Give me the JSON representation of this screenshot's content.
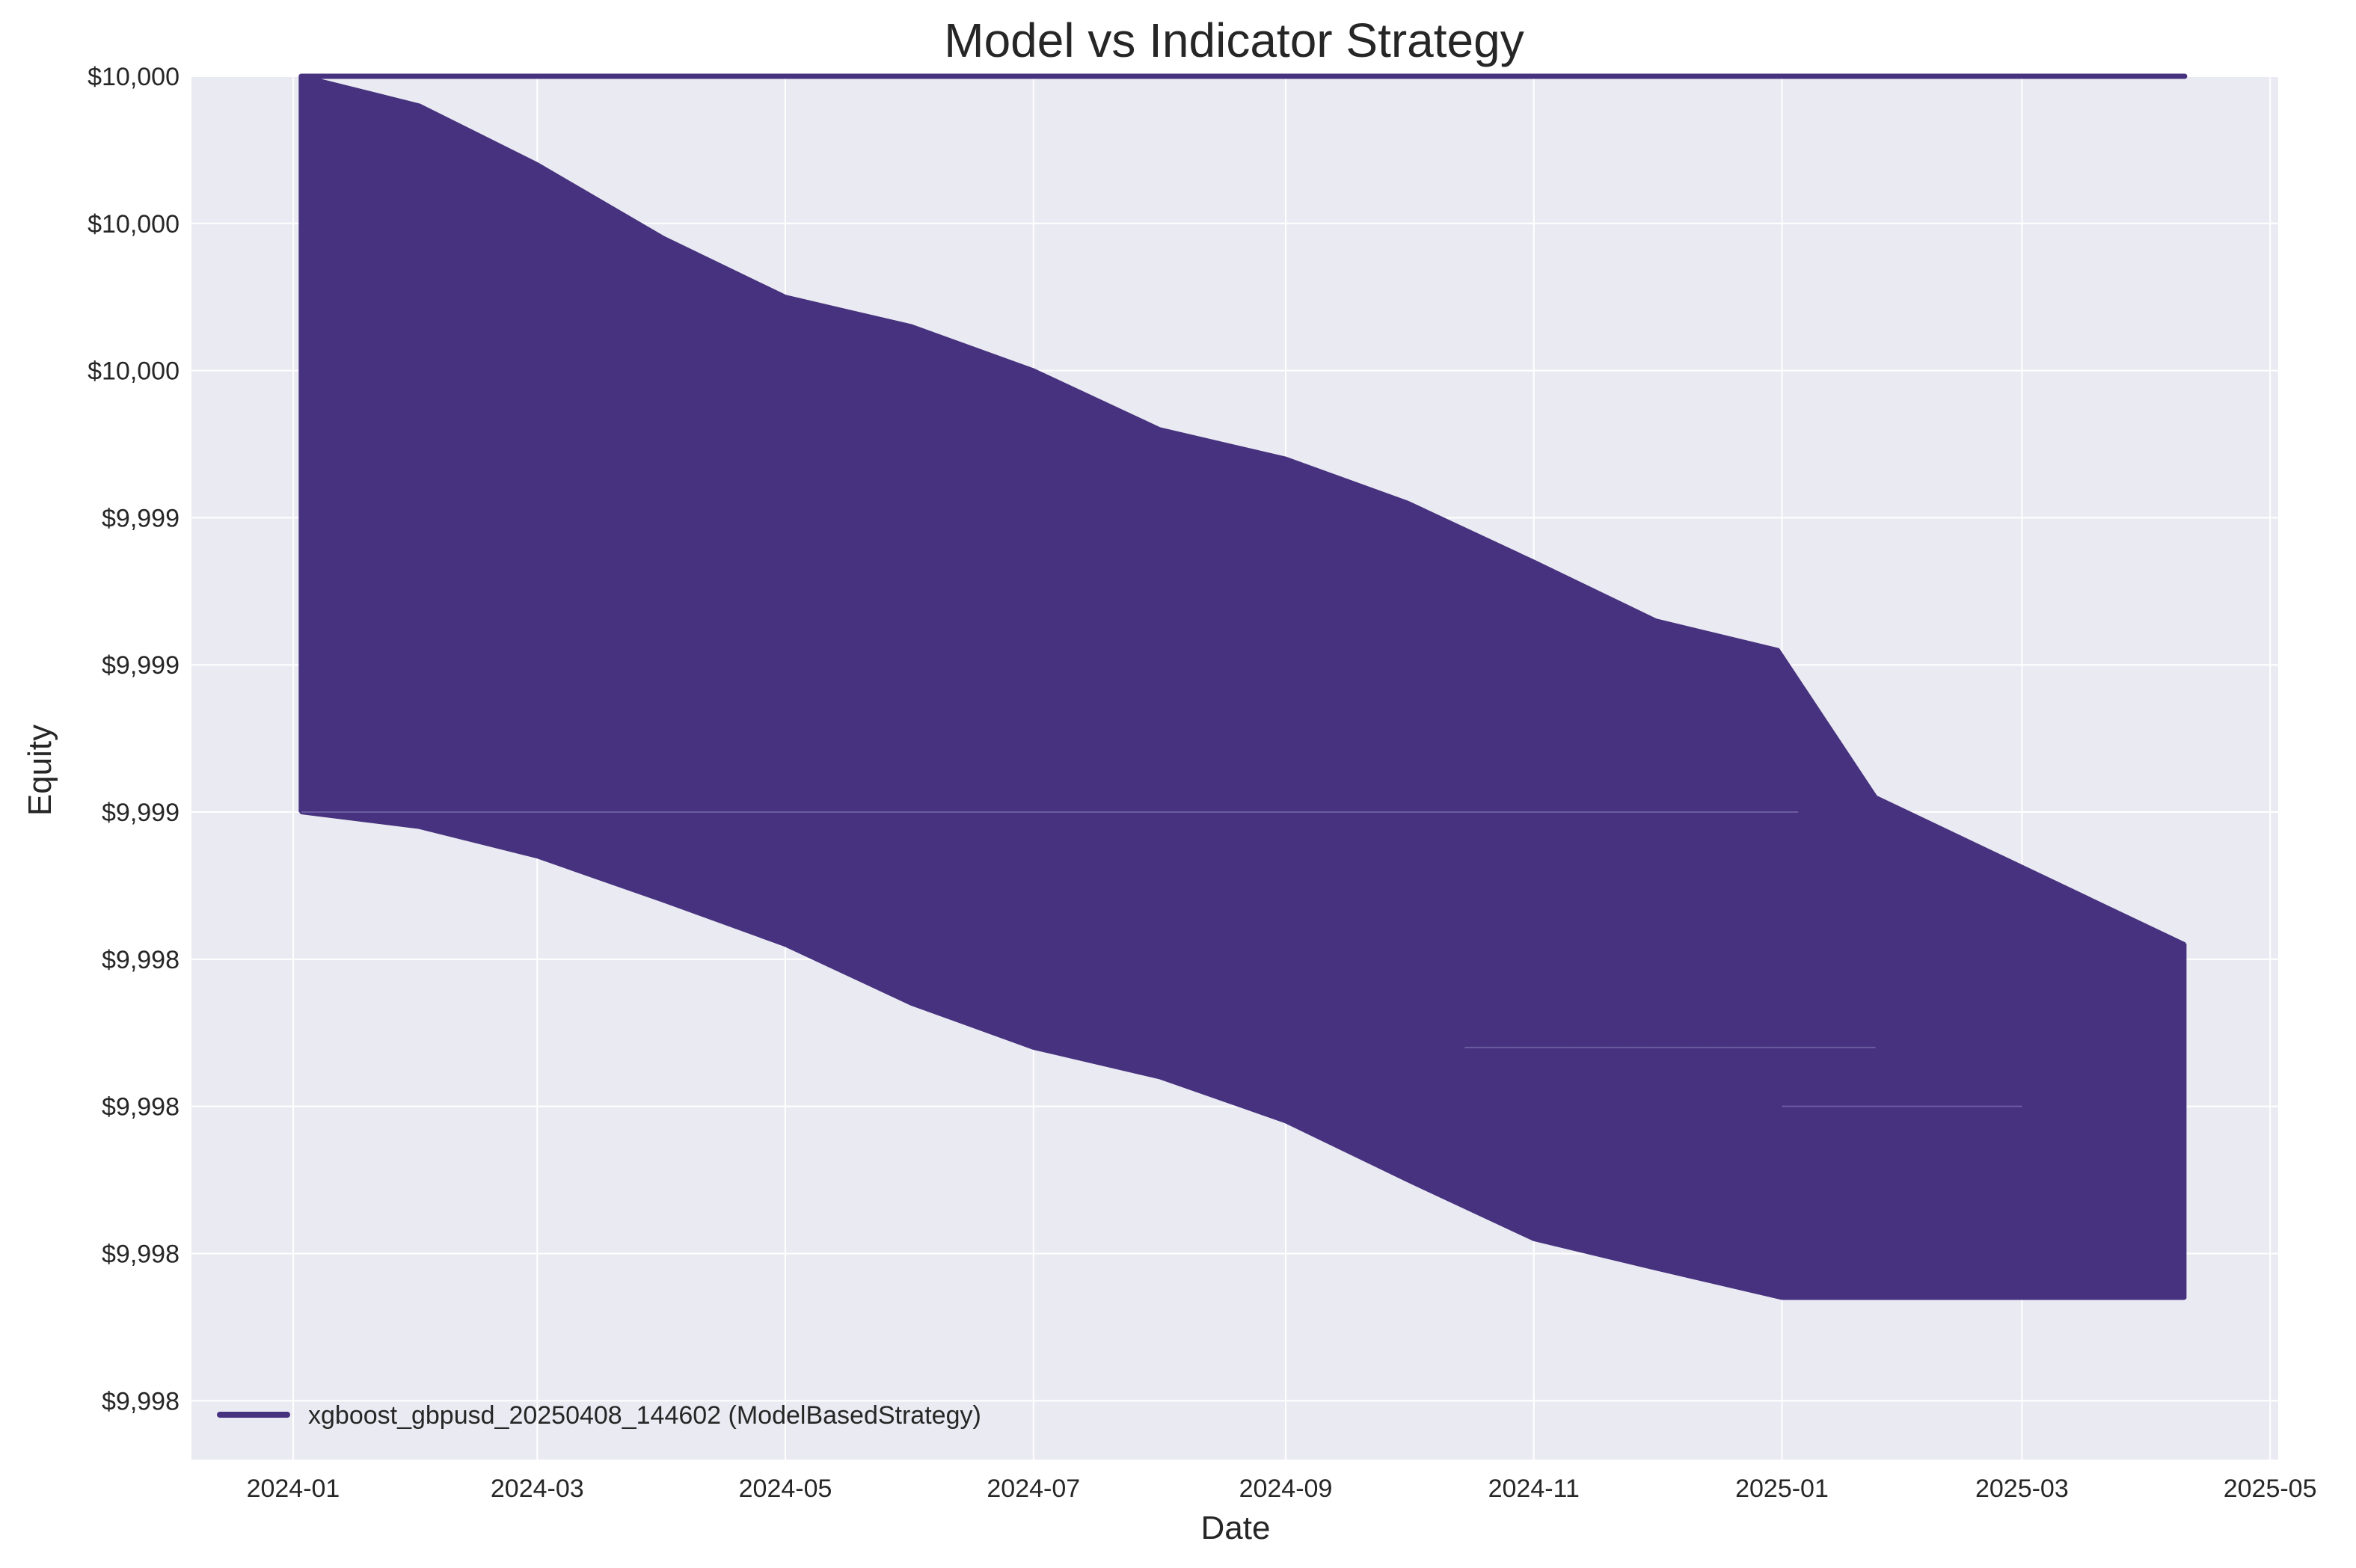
{
  "chart_data": {
    "type": "line",
    "title": "Model vs Indicator Strategy",
    "xlabel": "Date",
    "ylabel": "Equity",
    "x_ticks": [
      "2024-01",
      "2024-03",
      "2024-05",
      "2024-07",
      "2024-09",
      "2024-11",
      "2025-01",
      "2025-03",
      "2025-05"
    ],
    "y_ticks": [
      "$9,998",
      "$9,998",
      "$9,998",
      "$9,998",
      "$9,999",
      "$9,999",
      "$9,999",
      "$10,000",
      "$10,000",
      "$10,000"
    ],
    "y_tick_values": [
      9997.96,
      9998.06,
      9998.16,
      9998.26,
      9998.36,
      9998.46,
      9998.56,
      9998.66,
      9998.76,
      9998.86
    ],
    "xlim": [
      "2023-12-07",
      "2025-05-03"
    ],
    "ylim": [
      9997.92,
      9998.86
    ],
    "grid": true,
    "legend_position": "lower-left",
    "series": [
      {
        "name": "xgboost_gbpusd_20250408_144602 (ModelBasedStrategy)",
        "color": "#46327e",
        "flat_value": 9998.86,
        "start": "2024-01-03",
        "end": "2025-04-10",
        "dense_upper": [
          [
            "2024-01-03",
            9998.86
          ],
          [
            "2024-02-01",
            9998.84
          ],
          [
            "2024-03-01",
            9998.8
          ],
          [
            "2024-04-01",
            9998.75
          ],
          [
            "2024-05-01",
            9998.71
          ],
          [
            "2024-06-01",
            9998.69
          ],
          [
            "2024-07-01",
            9998.66
          ],
          [
            "2024-08-01",
            9998.62
          ],
          [
            "2024-09-01",
            9998.6
          ],
          [
            "2024-10-01",
            9998.57
          ],
          [
            "2024-11-01",
            9998.53
          ],
          [
            "2024-12-01",
            9998.49
          ],
          [
            "2024-12-31",
            9998.47
          ],
          [
            "2025-01-24",
            9998.37
          ],
          [
            "2025-04-10",
            9998.27
          ]
        ],
        "dense_lower": [
          [
            "2024-01-03",
            9998.36
          ],
          [
            "2024-02-01",
            9998.35
          ],
          [
            "2024-03-01",
            9998.33
          ],
          [
            "2024-04-01",
            9998.3
          ],
          [
            "2024-05-01",
            9998.27
          ],
          [
            "2024-06-01",
            9998.23
          ],
          [
            "2024-07-01",
            9998.2
          ],
          [
            "2024-08-01",
            9998.18
          ],
          [
            "2024-09-01",
            9998.15
          ],
          [
            "2024-10-01",
            9998.11
          ],
          [
            "2024-11-01",
            9998.07
          ],
          [
            "2024-12-01",
            9998.05
          ],
          [
            "2025-01-01",
            9998.03
          ],
          [
            "2025-04-10",
            9998.03
          ]
        ],
        "drop_lines_start": "2024-01-03",
        "drop_lines_end": "2025-01-02",
        "drop_lines_count": 58
      }
    ]
  }
}
